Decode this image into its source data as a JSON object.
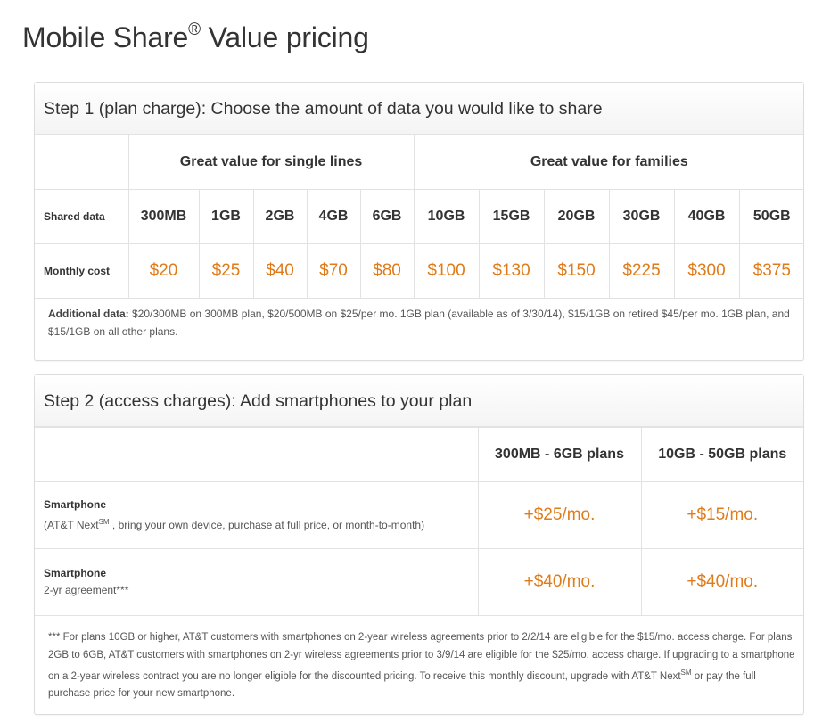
{
  "page": {
    "title": "Mobile Share",
    "title_mark": "®",
    "title_suffix": " Value pricing"
  },
  "step1": {
    "heading": "Step 1 (plan charge): Choose the amount of data you would like to share",
    "group_single": "Great value for single lines",
    "group_families": "Great value for families",
    "row_shared_label": "Shared data",
    "row_cost_label": "Monthly cost",
    "plans": [
      {
        "data": "300MB",
        "cost": "$20"
      },
      {
        "data": "1GB",
        "cost": "$25"
      },
      {
        "data": "2GB",
        "cost": "$40"
      },
      {
        "data": "4GB",
        "cost": "$70"
      },
      {
        "data": "6GB",
        "cost": "$80"
      },
      {
        "data": "10GB",
        "cost": "$100"
      },
      {
        "data": "15GB",
        "cost": "$130"
      },
      {
        "data": "20GB",
        "cost": "$150"
      },
      {
        "data": "30GB",
        "cost": "$225"
      },
      {
        "data": "40GB",
        "cost": "$300"
      },
      {
        "data": "50GB",
        "cost": "$375"
      }
    ],
    "note_label": "Additional data:",
    "note_text": " $20/300MB on 300MB plan, $20/500MB on $25/per mo. 1GB plan (available as of 3/30/14), $15/1GB on retired $45/per mo. 1GB plan, and $15/1GB on all other plans."
  },
  "step2": {
    "heading": "Step 2 (access charges): Add smartphones to your plan",
    "col_small": "300MB - 6GB plans",
    "col_large": "10GB - 50GB plans",
    "row1_title": "Smartphone",
    "row1_sub_a": "(AT&T Next",
    "row1_sub_sm": "SM",
    "row1_sub_b": " , bring your own device, purchase at full price, or month-to-month)",
    "row1_price_small": "+$25/mo.",
    "row1_price_large": "+$15/mo.",
    "row2_title": "Smartphone",
    "row2_sub": "2-yr agreement***",
    "row2_price_small": "+$40/mo.",
    "row2_price_large": "+$40/mo.",
    "footnote_a": "*** For plans 10GB or higher, AT&T customers with smartphones on 2-year wireless agreements prior to 2/2/14 are eligible for the $15/mo. access charge. For plans 2GB to 6GB, AT&T customers with smartphones on 2-yr wireless agreements prior to 3/9/14 are eligible for the $25/mo. access charge. If upgrading to a smartphone on a 2-year wireless contract you are no longer eligible for the discounted pricing. To receive this monthly discount, upgrade with AT&T Next",
    "footnote_sm": "SM",
    "footnote_b": "  or pay the full purchase price for your new smartphone."
  },
  "colors": {
    "price": "#e07b1a",
    "border": "#e2e2e2"
  }
}
